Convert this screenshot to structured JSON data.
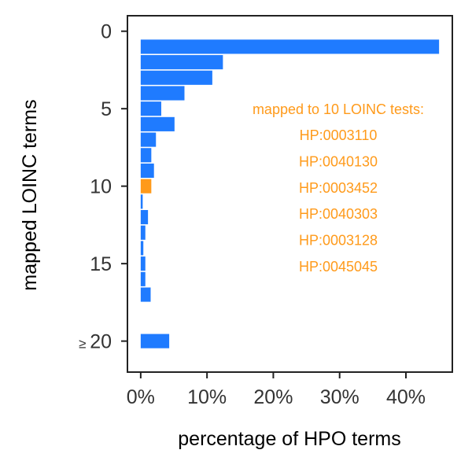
{
  "chart_data": {
    "type": "bar",
    "orientation": "horizontal",
    "xlabel": "percentage of HPO terms",
    "ylabel": "mapped LOINC terms",
    "x_ticks": [
      "0%",
      "10%",
      "20%",
      "30%",
      "40%"
    ],
    "x_tick_values": [
      0,
      10,
      20,
      30,
      40
    ],
    "xlim": [
      -2,
      47
    ],
    "y_ticks": [
      {
        "label": "0",
        "value": 0
      },
      {
        "label": "5",
        "value": 5
      },
      {
        "label": "10",
        "value": 10
      },
      {
        "label": "15",
        "value": 15
      },
      {
        "label": "≥ 20",
        "value": 20
      }
    ],
    "ylim": [
      -1,
      22
    ],
    "bar_color": "#1f7bff",
    "highlight_color": "#ff9a1a",
    "bars": [
      {
        "y": 1,
        "value": 45.0
      },
      {
        "y": 2,
        "value": 12.4
      },
      {
        "y": 3,
        "value": 10.8
      },
      {
        "y": 4,
        "value": 6.6
      },
      {
        "y": 5,
        "value": 3.1
      },
      {
        "y": 6,
        "value": 5.1
      },
      {
        "y": 7,
        "value": 2.3
      },
      {
        "y": 8,
        "value": 1.6
      },
      {
        "y": 9,
        "value": 2.0
      },
      {
        "y": 10,
        "value": 1.6,
        "highlight": true
      },
      {
        "y": 11,
        "value": 0.3
      },
      {
        "y": 12,
        "value": 1.1
      },
      {
        "y": 13,
        "value": 0.7
      },
      {
        "y": 14,
        "value": 0.4
      },
      {
        "y": 15,
        "value": 0.7
      },
      {
        "y": 16,
        "value": 0.7
      },
      {
        "y": 17,
        "value": 1.5
      },
      {
        "y": 20,
        "value": 4.3
      }
    ],
    "annotation": {
      "title": "mapped to 10 LOINC tests:",
      "items": [
        "HP:0003110",
        "HP:0040130",
        "HP:0003452",
        "HP:0040303",
        "HP:0003128",
        "HP:0045045"
      ]
    }
  }
}
